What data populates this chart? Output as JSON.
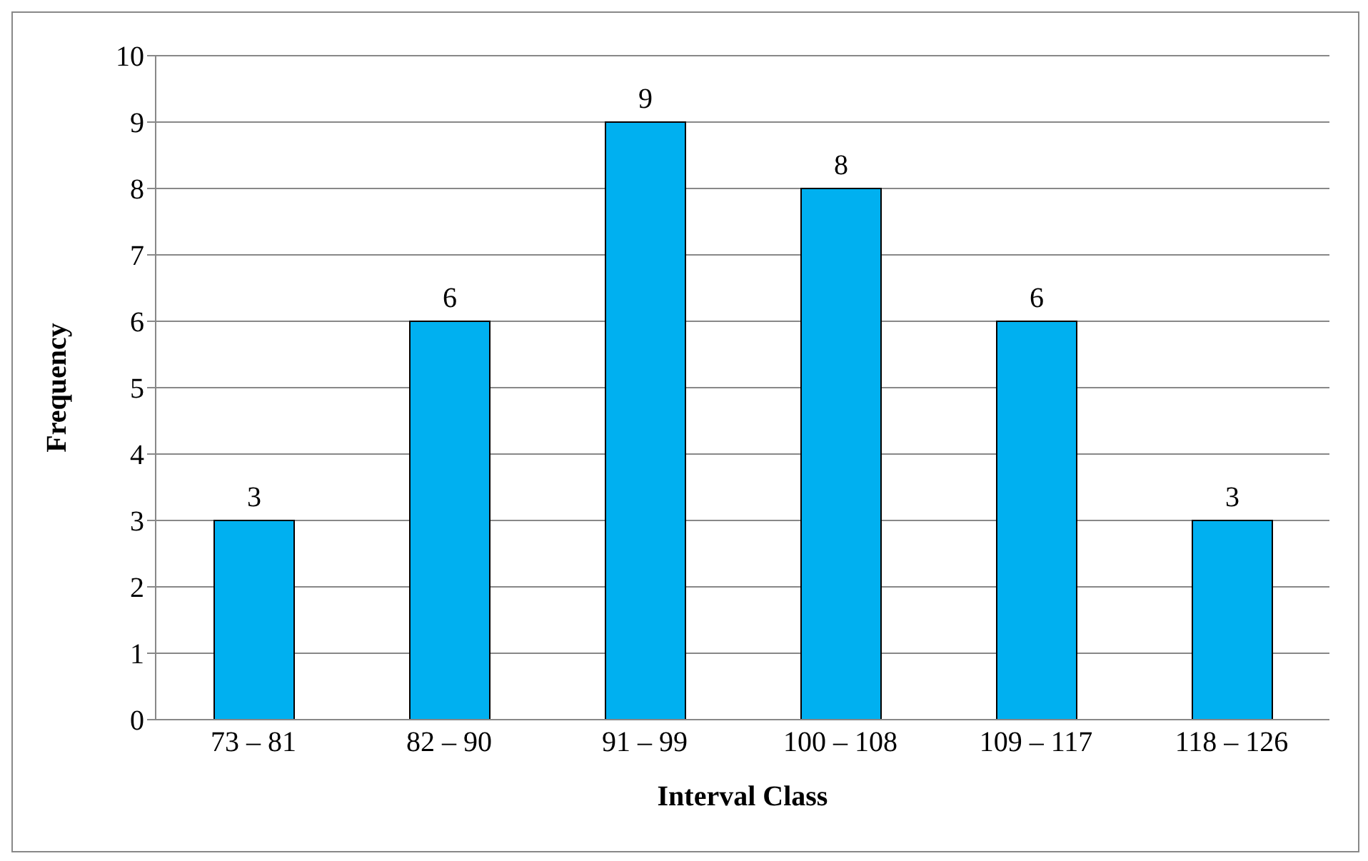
{
  "chart_data": {
    "type": "bar",
    "xlabel": "Interval Class",
    "ylabel": "Frequency",
    "categories": [
      "73 – 81",
      "82 – 90",
      "91 – 99",
      "100 – 108",
      "109 – 117",
      "118 – 126"
    ],
    "values": [
      3,
      6,
      9,
      8,
      6,
      3
    ],
    "color": "#00b0f0",
    "ylim": [
      0,
      10
    ],
    "yticks": [
      0,
      1,
      2,
      3,
      4,
      5,
      6,
      7,
      8,
      9,
      10
    ],
    "grid": "y",
    "data_labels": true
  }
}
